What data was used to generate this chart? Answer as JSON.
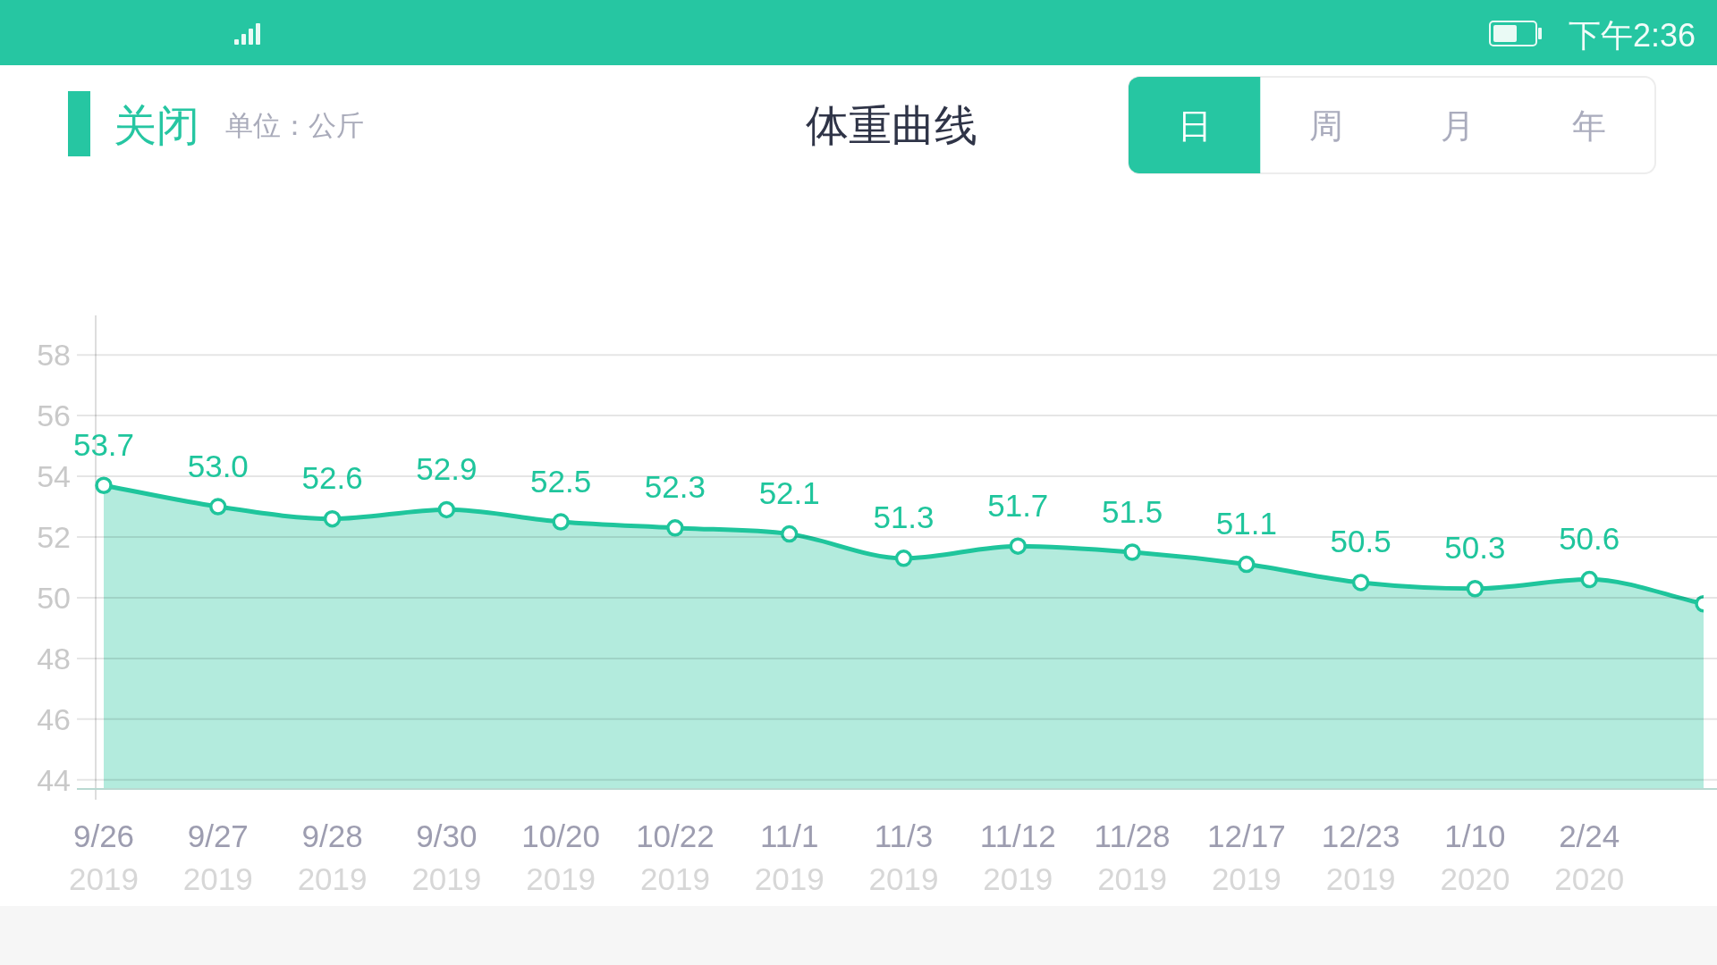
{
  "chart_data": {
    "type": "area",
    "title": "体重曲线",
    "categories": [
      "9/26\n2019",
      "9/27\n2019",
      "9/28\n2019",
      "9/30\n2019",
      "10/20\n2019",
      "10/22\n2019",
      "11/1\n2019",
      "11/3\n2019",
      "11/12\n2019",
      "11/28\n2019",
      "12/17\n2019",
      "12/23\n2019",
      "1/10\n2020",
      "2/24\n2020",
      null
    ],
    "values": [
      53.7,
      53.0,
      52.6,
      52.9,
      52.5,
      52.3,
      52.1,
      51.3,
      51.7,
      51.5,
      51.1,
      50.5,
      50.3,
      50.6,
      49.8
    ],
    "value_labels": [
      "53.7",
      "53.0",
      "52.6",
      "52.9",
      "52.5",
      "52.3",
      "52.1",
      "51.3",
      "51.7",
      "51.5",
      "51.1",
      "50.5",
      "50.3",
      "50.6",
      null
    ],
    "color": "#1fc59c",
    "ylim": [
      43.7,
      59.3
    ],
    "yticks": [
      44,
      46,
      48,
      50,
      52,
      54,
      56,
      58
    ],
    "grid": "y",
    "marker": "circle",
    "annotations": [
      "关闭",
      "单位：公斤",
      "日",
      "周",
      "月",
      "年",
      "下午2:36"
    ]
  }
}
